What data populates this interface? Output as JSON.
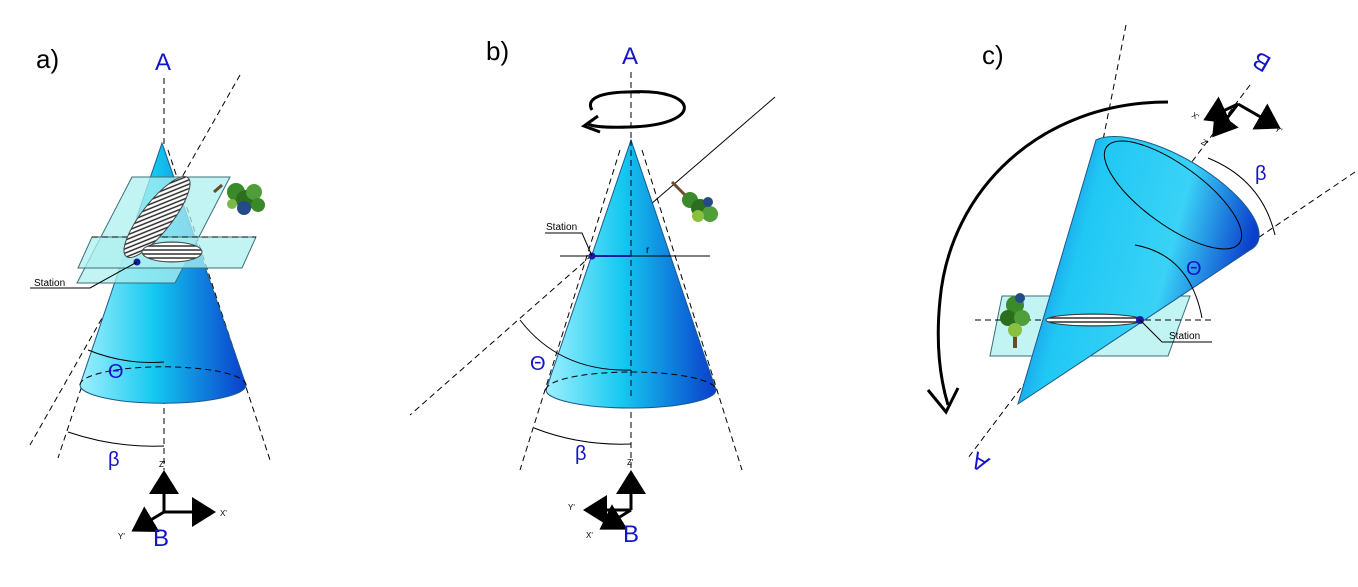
{
  "panels": [
    {
      "label": "a)",
      "axis_top": "A",
      "axis_bottom": "B",
      "theta": "Θ",
      "beta": "β",
      "station": "Station",
      "z_axis": "Z'",
      "x_axis": "X'",
      "y_axis": "Y'"
    },
    {
      "label": "b)",
      "axis_top": "A",
      "axis_bottom": "B",
      "theta": "Θ",
      "beta": "β",
      "station": "Station",
      "radius": "r",
      "z_axis": "Z'",
      "x_axis": "X'",
      "y_axis": "Y'"
    },
    {
      "label": "c)",
      "axis_top": "B",
      "axis_bottom": "A",
      "theta": "Θ",
      "beta": "β",
      "station": "Station",
      "z_axis": "Z'",
      "x_axis": "X'",
      "y_axis": "Y'"
    }
  ],
  "colors": {
    "cone_light": "#a8f4ff",
    "cone_mid": "#14c8f0",
    "cone_dark": "#0a3ecc",
    "plane": "#aef0f0",
    "label_blue": "#1414c8"
  }
}
